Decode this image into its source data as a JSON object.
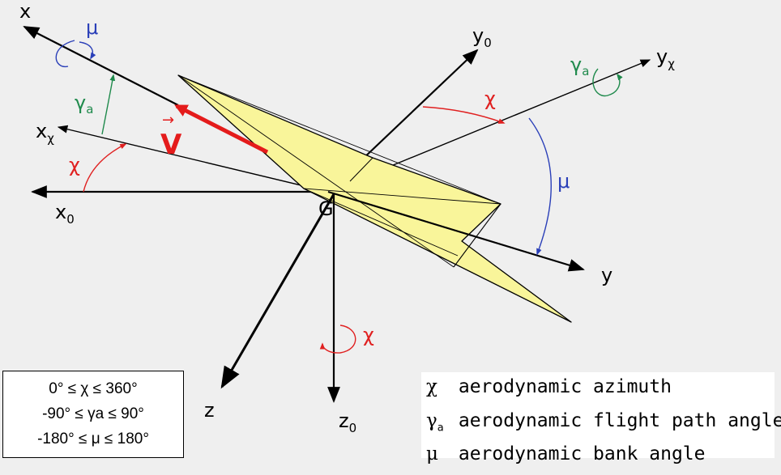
{
  "colors": {
    "background": "#efefef",
    "wing_fill": "#f9f59a",
    "velocity": "#e41b1b",
    "chi": "#e02020",
    "mu": "#2a3fb8",
    "gamma": "#1f8a4c"
  },
  "axes": {
    "x": "x",
    "x_chi": "x",
    "x_chi_sub": "χ",
    "x0": "x",
    "x0_sub": "0",
    "y0": "y",
    "y0_sub": "0",
    "y_chi": "y",
    "y_chi_sub": "χ",
    "y": "y",
    "z": "z",
    "z0": "z",
    "z0_sub": "0"
  },
  "center_label": "G",
  "velocity_label": "V",
  "angle_labels": {
    "mu": "μ",
    "chi": "χ",
    "gamma": "γ",
    "gamma_sub": "a"
  },
  "ranges": [
    "0° ≤ χ ≤ 360°",
    "-90° ≤ γa ≤ 90°",
    "-180° ≤ μ ≤ 180°"
  ],
  "legend": [
    {
      "symbol": "χ",
      "sub": "",
      "text": "aerodynamic azimuth"
    },
    {
      "symbol": "γ",
      "sub": "a",
      "text": "aerodynamic flight path angle"
    },
    {
      "symbol": "μ",
      "sub": "",
      "text": "aerodynamic bank angle"
    }
  ]
}
